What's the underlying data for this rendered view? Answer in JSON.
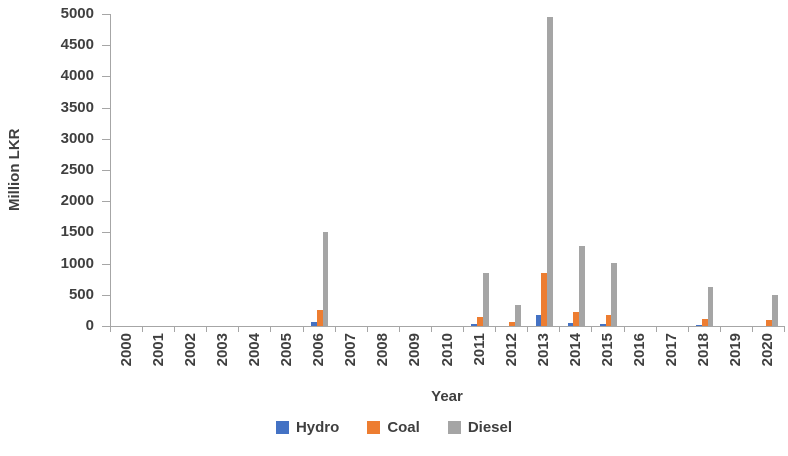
{
  "chart_data": {
    "type": "bar",
    "bar_layout": "grouped",
    "title": "",
    "xlabel": "Year",
    "ylabel": "Million LKR",
    "ylim": [
      0,
      5000
    ],
    "ytick_step": 500,
    "grid": false,
    "legend_position": "bottom",
    "axis_line_color": "#a6a6a6",
    "text_color": "#3f3f3f",
    "categories": [
      "2000",
      "2001",
      "2002",
      "2003",
      "2004",
      "2005",
      "2006",
      "2007",
      "2008",
      "2009",
      "2010",
      "2011",
      "2012",
      "2013",
      "2014",
      "2015",
      "2016",
      "2017",
      "2018",
      "2019",
      "2020"
    ],
    "series": [
      {
        "name": "Hydro",
        "color": "#4472C4",
        "values": [
          0,
          0,
          0,
          0,
          0,
          0,
          60,
          0,
          0,
          0,
          0,
          30,
          0,
          180,
          50,
          40,
          0,
          0,
          20,
          0,
          0
        ]
      },
      {
        "name": "Coal",
        "color": "#ED7D31",
        "values": [
          0,
          0,
          0,
          0,
          0,
          0,
          260,
          0,
          0,
          0,
          0,
          140,
          60,
          850,
          230,
          170,
          0,
          0,
          120,
          0,
          90
        ]
      },
      {
        "name": "Diesel",
        "color": "#A5A5A5",
        "values": [
          0,
          0,
          0,
          0,
          0,
          0,
          1500,
          0,
          0,
          0,
          0,
          850,
          330,
          4950,
          1290,
          1010,
          0,
          0,
          620,
          0,
          500
        ]
      }
    ]
  }
}
